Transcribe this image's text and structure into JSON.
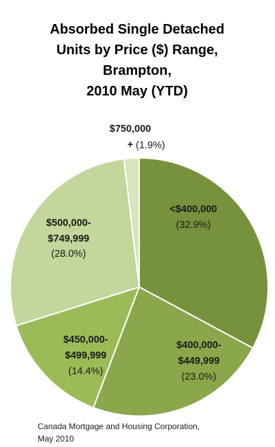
{
  "chart_data": {
    "type": "pie",
    "title": "Absorbed Single Detached\nUnits by Price ($) Range,\nBrampton,\n2010 May (YTD)",
    "categories": [
      "<$400,000",
      "$400,000-\n$449,999",
      "$450,000-\n$499,999",
      "$500,000-\n$749,999",
      "$750,000\n+"
    ],
    "values": [
      32.9,
      23.0,
      14.4,
      28.0,
      1.9
    ],
    "value_labels": [
      "(32.9%)",
      "(23.0%)",
      "(14.4%)",
      "(28.0%)",
      "(1.9%)"
    ],
    "colors": [
      "#76923c",
      "#8aa84b",
      "#9bbb59",
      "#c3d69b",
      "#d7e4bd"
    ],
    "source": "Canada Mortgage and Housing Corporation,\nMay 2010"
  }
}
